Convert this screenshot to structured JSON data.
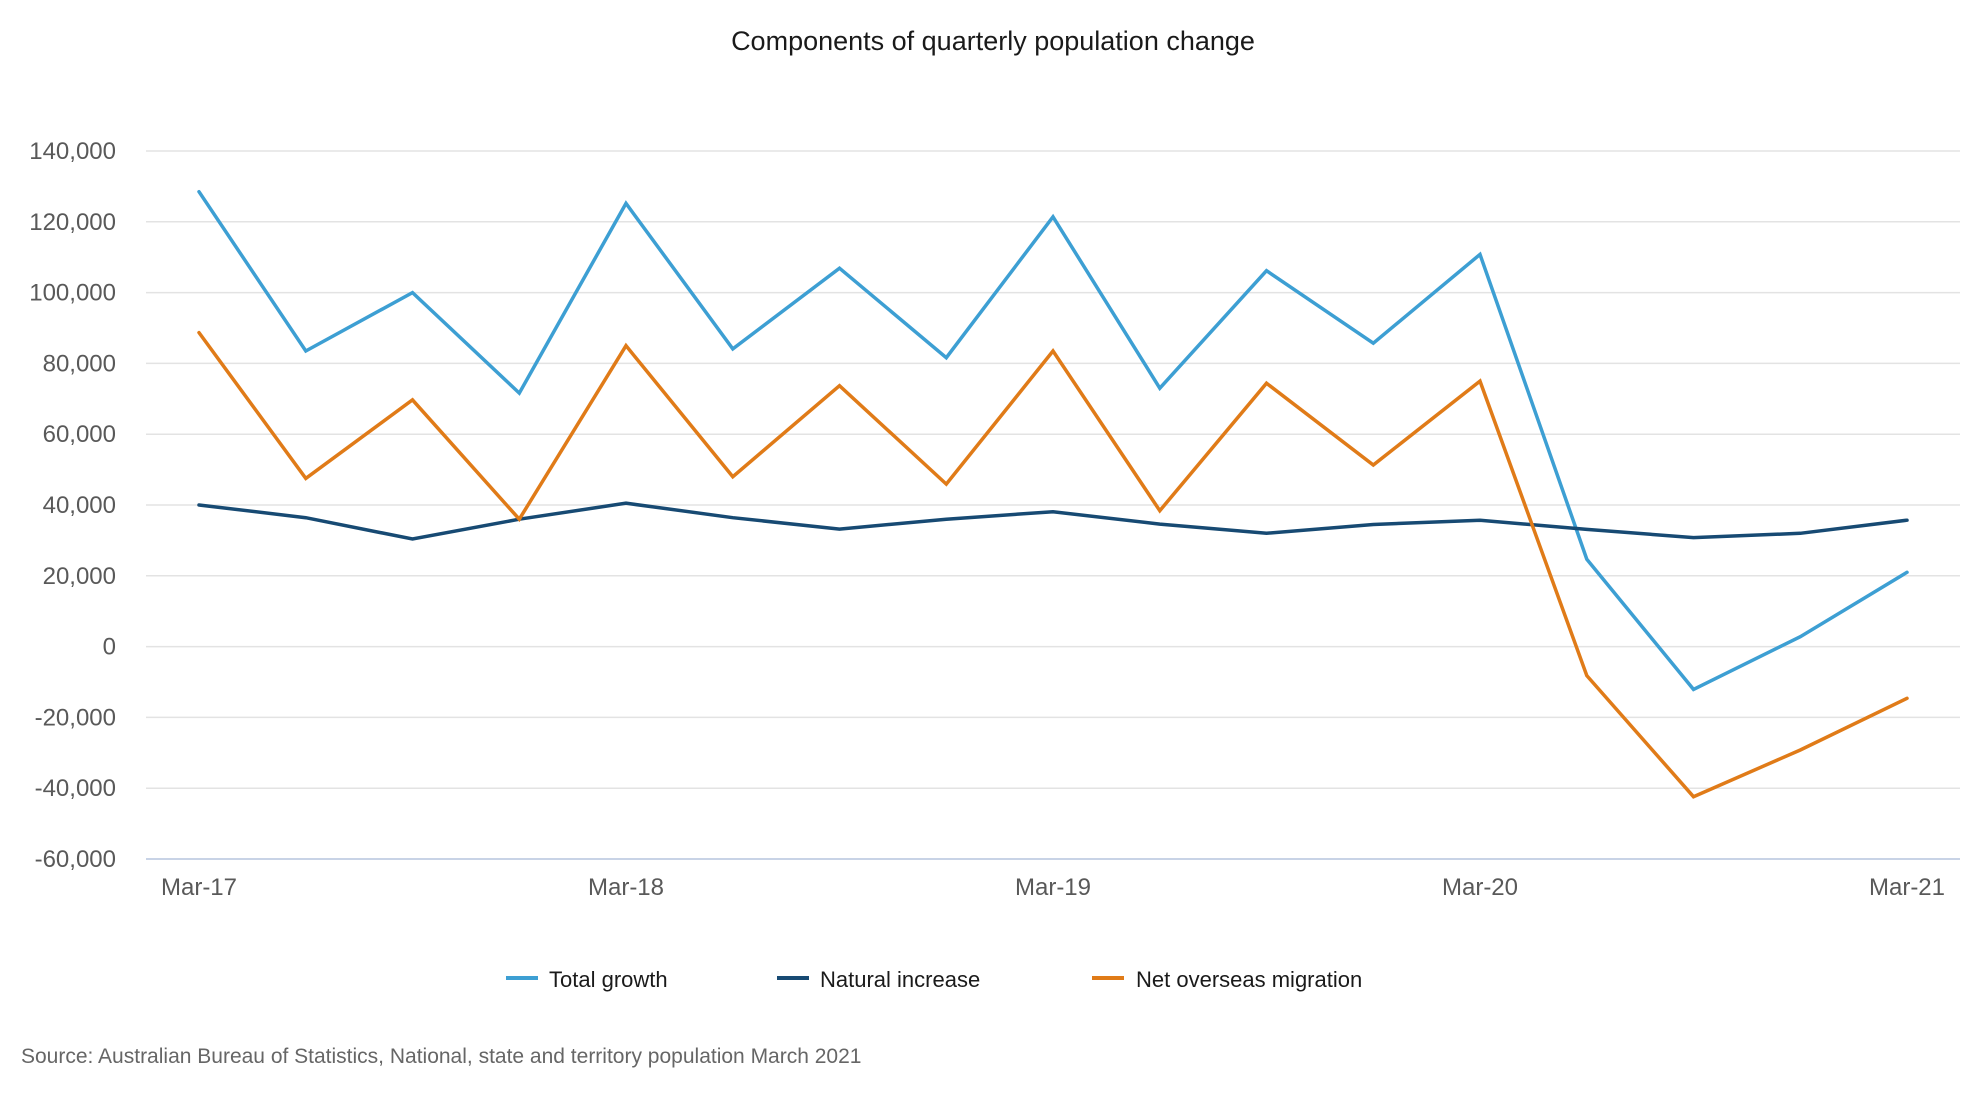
{
  "chart_data": {
    "type": "line",
    "title": "Components of quarterly population change",
    "xlabel": "",
    "ylabel": "",
    "ylim": [
      -60000,
      140000
    ],
    "yticks": [
      140000,
      120000,
      100000,
      80000,
      60000,
      40000,
      20000,
      0,
      -20000,
      -40000,
      -60000
    ],
    "ytick_labels": [
      "140,000",
      "120,000",
      "100,000",
      "80,000",
      "60,000",
      "40,000",
      "20,000",
      "0",
      "-20,000",
      "-40,000",
      "-60,000"
    ],
    "grid": true,
    "x": [
      "Mar-17",
      "Jun-17",
      "Sep-17",
      "Dec-17",
      "Mar-18",
      "Jun-18",
      "Sep-18",
      "Dec-18",
      "Mar-19",
      "Jun-19",
      "Sep-19",
      "Dec-19",
      "Mar-20",
      "Jun-20",
      "Sep-20",
      "Dec-20",
      "Mar-21"
    ],
    "xtick_labels": [
      {
        "index": 0,
        "label": "Mar-17"
      },
      {
        "index": 4,
        "label": "Mar-18"
      },
      {
        "index": 8,
        "label": "Mar-19"
      },
      {
        "index": 12,
        "label": "Mar-20"
      },
      {
        "index": 16,
        "label": "Mar-21"
      }
    ],
    "series": [
      {
        "name": "Total growth",
        "color": "#3d9fd3",
        "values": [
          128500,
          83500,
          100000,
          71600,
          125200,
          84100,
          106900,
          81600,
          121400,
          73000,
          106200,
          85700,
          110800,
          24700,
          -12100,
          2800,
          21000
        ]
      },
      {
        "name": "Natural increase",
        "color": "#174a73",
        "values": [
          40000,
          36400,
          30400,
          36000,
          40500,
          36400,
          33200,
          36000,
          38100,
          34600,
          32000,
          34500,
          35700,
          33100,
          30800,
          32000,
          35700
        ]
      },
      {
        "name": "Net overseas migration",
        "color": "#e07b18",
        "values": [
          88700,
          47500,
          69700,
          36000,
          85000,
          48000,
          73700,
          45900,
          83500,
          38400,
          74400,
          51300,
          75000,
          -8200,
          -42400,
          -29200,
          -14600
        ]
      }
    ],
    "legend": {
      "position": "bottom-center",
      "entries": [
        "Total growth",
        "Natural increase",
        "Net overseas migration"
      ]
    },
    "source": "Source: Australian Bureau of Statistics, National, state and territory population March 2021"
  }
}
